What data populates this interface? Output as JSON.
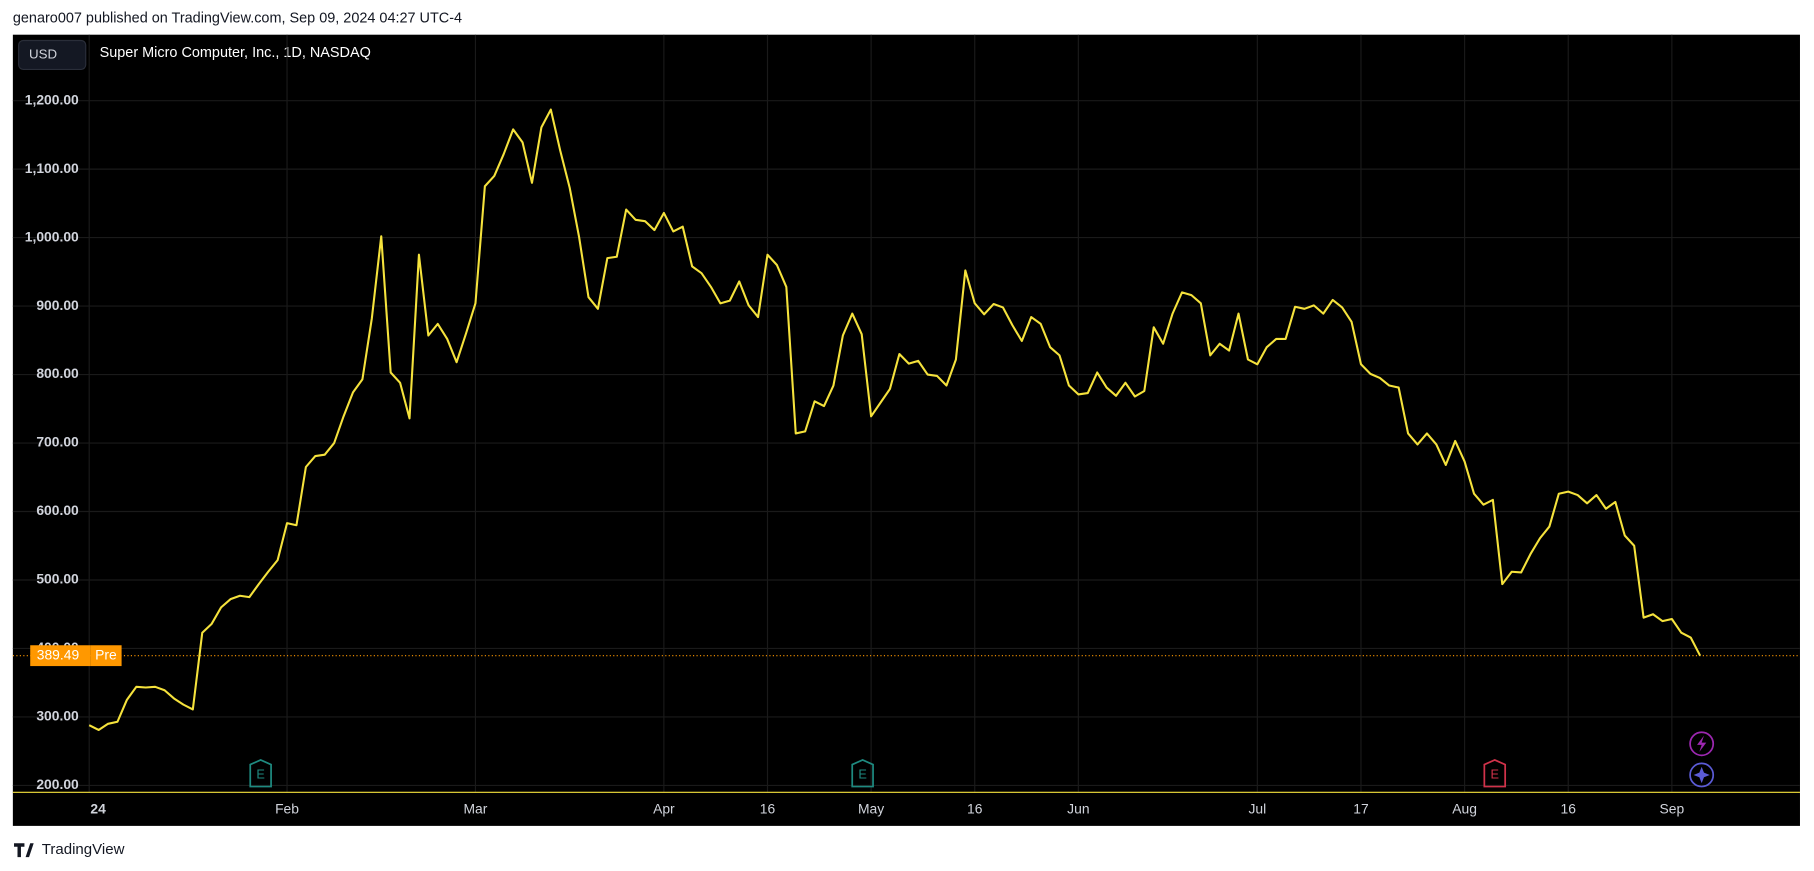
{
  "header": "genaro007 published on TradingView.com, Sep 09, 2024 04:27 UTC-4",
  "footer": "TradingView",
  "currency_button": "USD",
  "chart_data": {
    "type": "line",
    "title": "Super Micro Computer, Inc., 1D, NASDAQ",
    "series": [
      {
        "color": "#f5e23c",
        "values": [
          288,
          281,
          290,
          293,
          325,
          344,
          343,
          344,
          339,
          327,
          318,
          311,
          423,
          436,
          460,
          472,
          477,
          475,
          494,
          512,
          529,
          583,
          580,
          665,
          681,
          683,
          700,
          739,
          774,
          793,
          882,
          1002,
          803,
          788,
          736,
          975,
          857,
          874,
          852,
          818,
          860,
          904,
          1075,
          1090,
          1122,
          1158,
          1139,
          1080,
          1161,
          1187,
          1127,
          1073,
          1001,
          913,
          896,
          970,
          972,
          1041,
          1026,
          1024,
          1011,
          1036,
          1009,
          1016,
          958,
          948,
          928,
          904,
          908,
          936,
          901,
          884,
          975,
          960,
          928,
          714,
          717,
          761,
          754,
          784,
          857,
          889,
          859,
          739,
          759,
          779,
          830,
          816,
          820,
          800,
          798,
          784,
          822,
          952,
          904,
          888,
          903,
          898,
          872,
          849,
          884,
          874,
          840,
          828,
          784,
          771,
          773,
          803,
          781,
          769,
          788,
          768,
          776,
          869,
          845,
          889,
          920,
          916,
          904,
          828,
          845,
          835,
          889,
          822,
          815,
          840,
          852,
          852,
          899,
          896,
          901,
          889,
          909,
          898,
          877,
          815,
          801,
          795,
          784,
          781,
          714,
          698,
          714,
          698,
          668,
          703,
          673,
          626,
          610,
          617,
          494,
          512,
          511,
          538,
          561,
          578,
          626,
          629,
          624,
          612,
          624,
          604,
          614,
          565,
          550,
          445,
          450,
          440,
          443,
          423,
          416,
          389.49
        ]
      }
    ],
    "xlim": [
      0,
      181.6
    ],
    "xticks": [
      {
        "value": 0,
        "label": "24"
      },
      {
        "value": 21,
        "label": "Feb"
      },
      {
        "value": 41,
        "label": "Mar"
      },
      {
        "value": 61,
        "label": "Apr"
      },
      {
        "value": 72,
        "label": "16"
      },
      {
        "value": 83,
        "label": "May"
      },
      {
        "value": 94,
        "label": "16"
      },
      {
        "value": 105,
        "label": "Jun"
      },
      {
        "value": 124,
        "label": "Jul"
      },
      {
        "value": 135,
        "label": "17"
      },
      {
        "value": 146,
        "label": "Aug"
      },
      {
        "value": 157,
        "label": "16"
      },
      {
        "value": 168,
        "label": "Sep"
      }
    ],
    "ylim": [
      189.9,
      1296.3
    ],
    "yticks": [
      {
        "value": 200,
        "label": "200.00"
      },
      {
        "value": 300,
        "label": "300.00"
      },
      {
        "value": 400,
        "label": "400.00"
      },
      {
        "value": 500,
        "label": "500.00"
      },
      {
        "value": 600,
        "label": "600.00"
      },
      {
        "value": 700,
        "label": "700.00"
      },
      {
        "value": 800,
        "label": "800.00"
      },
      {
        "value": 900,
        "label": "900.00"
      },
      {
        "value": 1000,
        "label": "1,000.00"
      },
      {
        "value": 1100,
        "label": "1,100.00"
      },
      {
        "value": 1200,
        "label": "1,200.00"
      }
    ],
    "grid": true,
    "last_price": 389.49,
    "last_price_tag": "Pre",
    "events": [
      {
        "x": 18.2,
        "label": "E",
        "color": "#1e8a80"
      },
      {
        "x": 82.1,
        "label": "E",
        "color": "#1e8a80"
      },
      {
        "x": 149.2,
        "label": "E",
        "color": "#d1324a"
      }
    ]
  }
}
